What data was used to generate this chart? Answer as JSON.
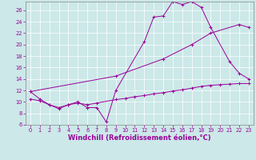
{
  "line1_x": [
    0,
    1,
    2,
    3,
    4,
    5,
    6,
    7,
    8,
    9,
    12,
    13,
    14,
    15,
    16,
    17,
    18,
    19,
    21,
    22,
    23
  ],
  "line1_y": [
    11.8,
    10.5,
    9.5,
    9.0,
    9.5,
    10.0,
    9.0,
    9.0,
    6.5,
    12.0,
    20.5,
    24.8,
    25.0,
    27.5,
    27.0,
    27.5,
    26.5,
    23.0,
    17.0,
    15.0,
    14.0
  ],
  "line2_x": [
    0,
    9,
    14,
    17,
    19,
    22,
    23
  ],
  "line2_y": [
    11.8,
    14.5,
    17.5,
    20.0,
    22.0,
    23.5,
    23.0
  ],
  "line3_x": [
    0,
    1,
    2,
    3,
    4,
    5,
    6,
    7,
    9,
    10,
    11,
    12,
    13,
    14,
    15,
    16,
    17,
    18,
    19,
    20,
    21,
    22,
    23
  ],
  "line3_y": [
    10.5,
    10.2,
    9.5,
    8.8,
    9.5,
    9.8,
    9.5,
    9.8,
    10.4,
    10.6,
    10.9,
    11.1,
    11.4,
    11.6,
    11.9,
    12.1,
    12.4,
    12.7,
    12.9,
    13.0,
    13.1,
    13.2,
    13.2
  ],
  "line_color": "#990099",
  "bg_color": "#cce8e8",
  "grid_color": "#b0d8d8",
  "xlabel": "Windchill (Refroidissement éolien,°C)",
  "xlim": [
    -0.5,
    23.5
  ],
  "ylim": [
    6,
    27.5
  ],
  "yticks": [
    6,
    8,
    10,
    12,
    14,
    16,
    18,
    20,
    22,
    24,
    26
  ],
  "xticks": [
    0,
    1,
    2,
    3,
    4,
    5,
    6,
    7,
    8,
    9,
    10,
    11,
    12,
    13,
    14,
    15,
    16,
    17,
    18,
    19,
    20,
    21,
    22,
    23
  ],
  "tick_fontsize": 4.8,
  "xlabel_fontsize": 6.0,
  "marker": "+",
  "markersize": 2.5,
  "markeredgewidth": 0.7,
  "linewidth": 0.7
}
